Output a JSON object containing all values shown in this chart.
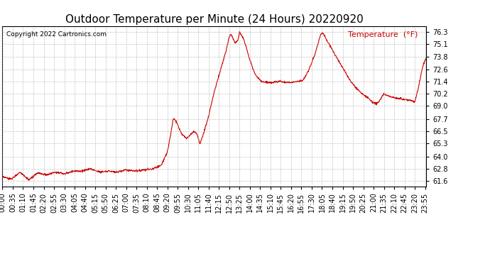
{
  "title": "Outdoor Temperature per Minute (24 Hours) 20220920",
  "copyright_text": "Copyright 2022 Cartronics.com",
  "legend_label": "Temperature  (°F)",
  "line_color": "#cc0000",
  "background_color": "#ffffff",
  "grid_color": "#999999",
  "yticks": [
    61.6,
    62.8,
    64.0,
    65.3,
    66.5,
    67.7,
    69.0,
    70.2,
    71.4,
    72.6,
    73.8,
    75.1,
    76.3
  ],
  "ylim": [
    61.1,
    76.8
  ],
  "title_fontsize": 11,
  "label_fontsize": 7
}
